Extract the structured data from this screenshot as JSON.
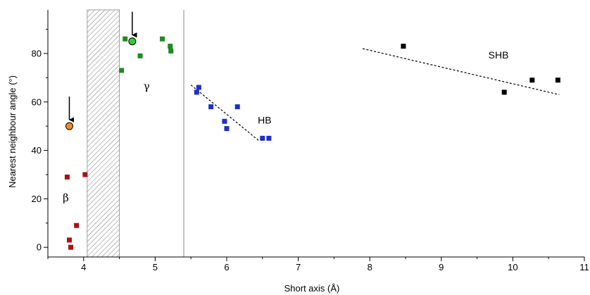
{
  "chart_data": {
    "type": "scatter",
    "xlabel": "Short axis (Å)",
    "ylabel": "Nearest neighbour angle (°)",
    "xlim": [
      3.5,
      11.0
    ],
    "ylim": [
      -4,
      98
    ],
    "x_ticks": [
      4,
      5,
      6,
      7,
      8,
      9,
      10,
      11
    ],
    "y_ticks": [
      0,
      20,
      40,
      60,
      80
    ],
    "grid": false,
    "hatched_band": {
      "x": [
        4.05,
        4.5
      ]
    },
    "divider_x": 5.4,
    "series": [
      {
        "group": "beta",
        "color": "#aa1111",
        "marker": "square",
        "x": [
          3.77,
          3.8,
          3.82,
          3.9,
          4.02
        ],
        "y": [
          29,
          3,
          0,
          9,
          30
        ]
      },
      {
        "group": "gamma",
        "color": "#1e8c1e",
        "marker": "square",
        "x": [
          4.53,
          4.58,
          4.79,
          5.1,
          5.21,
          5.22
        ],
        "y": [
          73,
          86,
          79,
          86,
          83,
          81
        ]
      },
      {
        "group": "HB",
        "color": "#1f2ecc",
        "marker": "square",
        "x": [
          5.58,
          5.61,
          5.78,
          5.97,
          6.0,
          6.15,
          6.5,
          6.59
        ],
        "y": [
          64,
          66,
          58,
          52,
          49,
          58,
          45,
          45
        ]
      },
      {
        "group": "SHB",
        "color": "#000000",
        "marker": "square",
        "x": [
          8.47,
          9.88,
          10.27,
          10.63
        ],
        "y": [
          83,
          64,
          69,
          69
        ]
      }
    ],
    "highlighted_points": [
      {
        "x": 3.8,
        "y": 50,
        "color": "#f28c28",
        "arrow": true
      },
      {
        "x": 4.68,
        "y": 85,
        "color": "#33cc33",
        "arrow": true
      }
    ],
    "trend_lines": [
      {
        "group": "HB",
        "x": [
          5.5,
          6.45
        ],
        "y": [
          67,
          44
        ]
      },
      {
        "group": "SHB",
        "x": [
          7.9,
          10.65
        ],
        "y": [
          82,
          63
        ]
      }
    ],
    "annotations": [
      {
        "text": "β",
        "x": 3.75,
        "y": 19,
        "style": "greek"
      },
      {
        "text": "γ",
        "x": 4.88,
        "y": 65,
        "style": "greek"
      },
      {
        "text": "HB",
        "x": 6.53,
        "y": 51,
        "style": "plain"
      },
      {
        "text": "SHB",
        "x": 9.8,
        "y": 78,
        "style": "plain"
      }
    ]
  }
}
